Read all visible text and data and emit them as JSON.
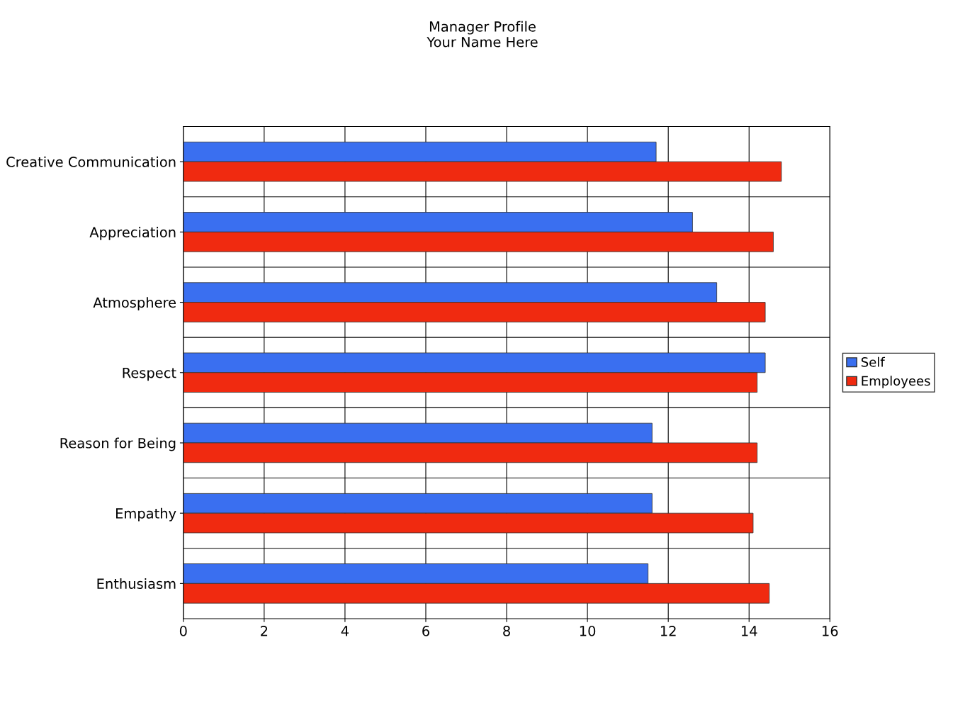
{
  "chart_data": {
    "type": "bar",
    "orientation": "horizontal",
    "title": "Manager Profile\nYour Name Here",
    "categories": [
      "Creative Communication",
      "Appreciation",
      "Atmosphere",
      "Respect",
      "Reason for Being",
      "Empathy",
      "Enthusiasm"
    ],
    "series": [
      {
        "name": "Self",
        "color": "#3a6ff0",
        "values": [
          11.7,
          12.6,
          13.2,
          14.4,
          11.6,
          11.6,
          11.5
        ]
      },
      {
        "name": "Employees",
        "color": "#f02a10",
        "values": [
          14.8,
          14.6,
          14.4,
          14.2,
          14.2,
          14.1,
          14.5
        ]
      }
    ],
    "xlim": [
      0,
      16
    ],
    "xticks": [
      0,
      2,
      4,
      6,
      8,
      10,
      12,
      14,
      16
    ],
    "grid": "x",
    "legend": "right"
  }
}
